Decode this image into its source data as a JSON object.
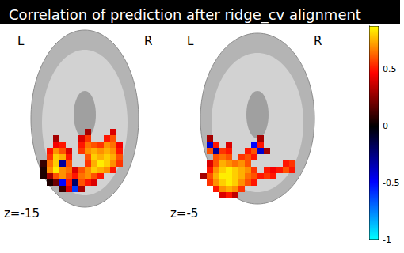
{
  "chart_data": {
    "type": "stat_map",
    "title": "Correlation of prediction after ridge_cv alignment",
    "tick_labels": false,
    "colorbar": {
      "range": [
        -1,
        0.88
      ],
      "ticks": [
        -1,
        -0.5,
        0,
        0.5
      ]
    },
    "panels": [
      {
        "label": "z=-15",
        "left": "L",
        "right": "R",
        "xlim": [
          0,
          20
        ],
        "ylim": [
          0,
          29
        ],
        "cells": [
          [
            10,
            12,
            0.3
          ],
          [
            14,
            12,
            0.4
          ],
          [
            5,
            11,
            0.3
          ],
          [
            9,
            11,
            0.4
          ],
          [
            10,
            11,
            0.55
          ],
          [
            13,
            11,
            0.5
          ],
          [
            14,
            11,
            0.6
          ],
          [
            5,
            10,
            0.45
          ],
          [
            6,
            10,
            0.5
          ],
          [
            9,
            10,
            0.5
          ],
          [
            10,
            10,
            0.65
          ],
          [
            11,
            10,
            0.6
          ],
          [
            12,
            10,
            0.55
          ],
          [
            13,
            10,
            0.7
          ],
          [
            14,
            10,
            0.65
          ],
          [
            15,
            10,
            0.45
          ],
          [
            4,
            9,
            0.5
          ],
          [
            5,
            9,
            0.7
          ],
          [
            6,
            9,
            0.6
          ],
          [
            7,
            9,
            0.4
          ],
          [
            9,
            9,
            0.55
          ],
          [
            10,
            9,
            0.7
          ],
          [
            11,
            9,
            0.75
          ],
          [
            12,
            9,
            0.7
          ],
          [
            13,
            9,
            0.75
          ],
          [
            14,
            9,
            0.7
          ],
          [
            15,
            9,
            0.5
          ],
          [
            4,
            8,
            0.55
          ],
          [
            5,
            8,
            0.8
          ],
          [
            6,
            8,
            0.75
          ],
          [
            7,
            8,
            0.5
          ],
          [
            10,
            8,
            0.6
          ],
          [
            11,
            8,
            0.8
          ],
          [
            12,
            8,
            0.75
          ],
          [
            13,
            8,
            0.8
          ],
          [
            14,
            8,
            0.75
          ],
          [
            15,
            8,
            0.6
          ],
          [
            3,
            7,
            0.1
          ],
          [
            4,
            7,
            0.65
          ],
          [
            5,
            7,
            0.8
          ],
          [
            6,
            7,
            -0.3
          ],
          [
            7,
            7,
            0.6
          ],
          [
            10,
            7,
            0.55
          ],
          [
            11,
            7,
            0.75
          ],
          [
            12,
            7,
            0.85
          ],
          [
            13,
            7,
            0.8
          ],
          [
            14,
            7,
            0.7
          ],
          [
            15,
            7,
            0.55
          ],
          [
            3,
            6,
            0.05
          ],
          [
            4,
            6,
            0.7
          ],
          [
            5,
            6,
            0.85
          ],
          [
            6,
            6,
            0.7
          ],
          [
            7,
            6,
            0.65
          ],
          [
            8,
            6,
            0.4
          ],
          [
            9,
            6,
            0.6
          ],
          [
            10,
            6,
            0.7
          ],
          [
            11,
            6,
            0.8
          ],
          [
            12,
            6,
            0.75
          ],
          [
            13,
            6,
            0.7
          ],
          [
            14,
            6,
            0.5
          ],
          [
            3,
            5,
            0.05
          ],
          [
            4,
            5,
            0.3
          ],
          [
            5,
            5,
            0.6
          ],
          [
            6,
            5,
            0.7
          ],
          [
            7,
            5,
            0.6
          ],
          [
            8,
            5,
            0.5
          ],
          [
            9,
            5,
            0.65
          ],
          [
            10,
            5,
            0.7
          ],
          [
            11,
            5,
            0.6
          ],
          [
            12,
            5,
            0.5
          ],
          [
            4,
            4,
            0.05
          ],
          [
            5,
            4,
            0.2
          ],
          [
            6,
            4,
            -0.5
          ],
          [
            7,
            4,
            0.5
          ],
          [
            8,
            4,
            -0.2
          ],
          [
            9,
            4,
            0.6
          ],
          [
            10,
            4,
            0.5
          ],
          [
            11,
            4,
            0.4
          ],
          [
            6,
            3,
            0.1
          ],
          [
            7,
            3,
            0.4
          ],
          [
            8,
            3,
            -0.6
          ],
          [
            9,
            3,
            0.3
          ]
        ]
      },
      {
        "label": "z=-5",
        "left": "L",
        "right": "R",
        "xlim": [
          0,
          20
        ],
        "ylim": [
          0,
          29
        ],
        "cells": [
          [
            2,
            11,
            0.3
          ],
          [
            10,
            11,
            0.3
          ],
          [
            2,
            10,
            -0.4
          ],
          [
            3,
            10,
            0.5
          ],
          [
            5,
            10,
            0.4
          ],
          [
            9,
            10,
            -0.5
          ],
          [
            10,
            10,
            0.5
          ],
          [
            2,
            9,
            0.6
          ],
          [
            3,
            9,
            -0.3
          ],
          [
            4,
            9,
            0.55
          ],
          [
            5,
            9,
            0.5
          ],
          [
            8,
            9,
            0.5
          ],
          [
            9,
            9,
            0.6
          ],
          [
            10,
            9,
            -0.4
          ],
          [
            11,
            9,
            0.3
          ],
          [
            3,
            8,
            0.6
          ],
          [
            4,
            8,
            0.65
          ],
          [
            5,
            8,
            0.6
          ],
          [
            7,
            8,
            0.55
          ],
          [
            8,
            8,
            0.6
          ],
          [
            9,
            8,
            0.5
          ],
          [
            2,
            7,
            0.4
          ],
          [
            3,
            7,
            0.6
          ],
          [
            4,
            7,
            0.75
          ],
          [
            5,
            7,
            0.7
          ],
          [
            6,
            7,
            0.65
          ],
          [
            7,
            7,
            0.7
          ],
          [
            8,
            7,
            0.6
          ],
          [
            14,
            7,
            0.5
          ],
          [
            15,
            7,
            0.55
          ],
          [
            2,
            6,
            0.5
          ],
          [
            3,
            6,
            0.7
          ],
          [
            4,
            6,
            0.8
          ],
          [
            5,
            6,
            0.85
          ],
          [
            6,
            6,
            0.8
          ],
          [
            7,
            6,
            0.75
          ],
          [
            8,
            6,
            0.7
          ],
          [
            9,
            6,
            0.55
          ],
          [
            11,
            6,
            0.5
          ],
          [
            12,
            6,
            0.45
          ],
          [
            13,
            6,
            0.5
          ],
          [
            14,
            6,
            0.6
          ],
          [
            15,
            6,
            0.5
          ],
          [
            1,
            5,
            0.3
          ],
          [
            2,
            5,
            0.6
          ],
          [
            3,
            5,
            0.75
          ],
          [
            4,
            5,
            0.85
          ],
          [
            5,
            5,
            0.85
          ],
          [
            6,
            5,
            0.8
          ],
          [
            7,
            5,
            0.75
          ],
          [
            8,
            5,
            0.65
          ],
          [
            9,
            5,
            0.6
          ],
          [
            10,
            5,
            0.5
          ],
          [
            11,
            5,
            0.55
          ],
          [
            12,
            5,
            0.5
          ],
          [
            2,
            4,
            0.55
          ],
          [
            3,
            4,
            0.7
          ],
          [
            4,
            4,
            0.8
          ],
          [
            5,
            4,
            0.85
          ],
          [
            6,
            4,
            0.8
          ],
          [
            7,
            4,
            0.7
          ],
          [
            8,
            4,
            0.6
          ],
          [
            9,
            4,
            0.5
          ],
          [
            3,
            3,
            0.5
          ],
          [
            4,
            3,
            0.7
          ],
          [
            5,
            3,
            0.75
          ],
          [
            6,
            3,
            0.7
          ],
          [
            7,
            3,
            0.55
          ],
          [
            4,
            2,
            0.4
          ],
          [
            5,
            2,
            0.5
          ],
          [
            6,
            2,
            0.35
          ]
        ]
      }
    ]
  }
}
